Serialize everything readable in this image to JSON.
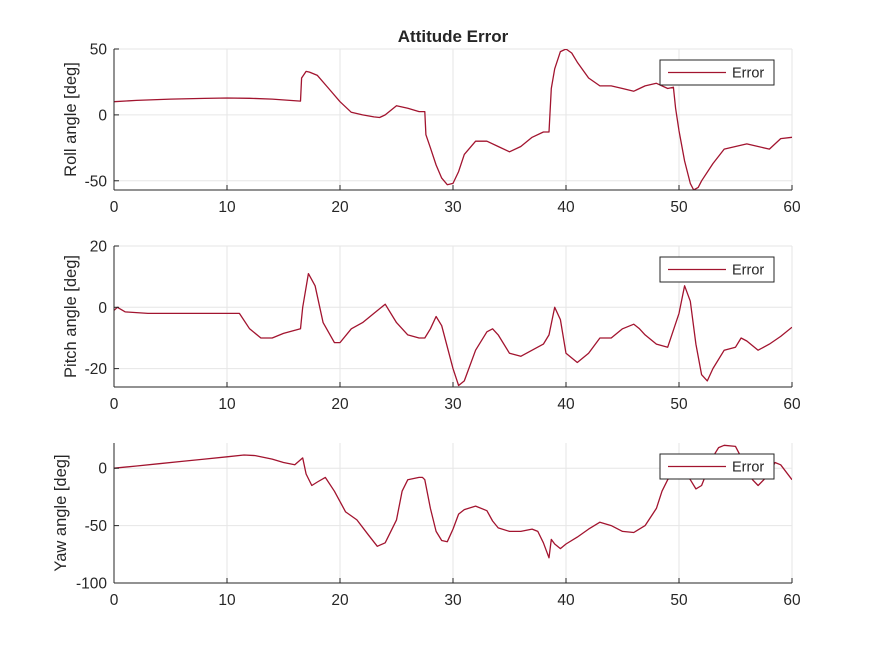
{
  "figure": {
    "title": "Attitude Error",
    "line_color": "#a2142f",
    "grid": true
  },
  "chart_data": [
    {
      "type": "line",
      "ylabel": "Roll angle [deg]",
      "xlabel": "",
      "xlim": [
        0,
        60
      ],
      "ylim": [
        -57,
        50
      ],
      "xticks": [
        0,
        10,
        20,
        30,
        40,
        50,
        60
      ],
      "yticks": [
        -50,
        0,
        50
      ],
      "legend": {
        "entries": [
          "Error"
        ],
        "location": "top-right"
      },
      "series": [
        {
          "name": "Error",
          "color": "#a2142f",
          "x": [
            0,
            2,
            5,
            8,
            10,
            12,
            14,
            16.5,
            16.6,
            17,
            17.3,
            18,
            19,
            20,
            21,
            22,
            23,
            23.5,
            24,
            25,
            26,
            27,
            27.5,
            27.6,
            28,
            28.5,
            29,
            29.5,
            30,
            30.5,
            31,
            32,
            33,
            34,
            35,
            36,
            37,
            38,
            38.5,
            38.7,
            39,
            39.5,
            40,
            40.5,
            41,
            42,
            43,
            44,
            45,
            46,
            47,
            48,
            49,
            49.5,
            49.7,
            50,
            50.5,
            51,
            51.3,
            51.7,
            52,
            53,
            54,
            55,
            56,
            57,
            58,
            59,
            60
          ],
          "y": [
            10,
            11,
            12,
            12.5,
            12.8,
            12.6,
            12,
            10.5,
            28,
            33,
            32.5,
            30,
            20,
            10,
            2,
            0,
            -1.5,
            -2,
            0,
            7,
            5,
            2.5,
            2.5,
            -15,
            -25,
            -38,
            -48,
            -53,
            -52,
            -43,
            -30,
            -20,
            -20,
            -24,
            -28,
            -24,
            -17,
            -13,
            -13,
            20,
            35,
            48,
            50,
            47,
            40,
            28,
            22,
            22,
            20,
            18,
            22,
            24,
            20,
            21,
            5,
            -12,
            -35,
            -52,
            -57,
            -55,
            -50,
            -37,
            -26,
            -24,
            -22,
            -24,
            -26,
            -18,
            -17
          ]
        }
      ]
    },
    {
      "type": "line",
      "ylabel": "Pitch angle [deg]",
      "xlabel": "",
      "xlim": [
        0,
        60
      ],
      "ylim": [
        -26,
        20
      ],
      "xticks": [
        0,
        10,
        20,
        30,
        40,
        50,
        60
      ],
      "yticks": [
        -20,
        0,
        20
      ],
      "legend": {
        "entries": [
          "Error"
        ],
        "location": "top-right"
      },
      "series": [
        {
          "name": "Error",
          "color": "#a2142f",
          "x": [
            0,
            0.3,
            1,
            3,
            6,
            9,
            11,
            11.1,
            12,
            13,
            14,
            15,
            16.5,
            16.7,
            17.2,
            17.8,
            18.5,
            19.5,
            20,
            21,
            22,
            23,
            24,
            25,
            26,
            27,
            27.5,
            28,
            28.5,
            29,
            30,
            30.5,
            31,
            32,
            33,
            33.5,
            34,
            35,
            36,
            37,
            38,
            38.5,
            39,
            39.5,
            40,
            41,
            42,
            43,
            44,
            45,
            46,
            46.5,
            47,
            48,
            49,
            50,
            50.5,
            51,
            51.5,
            52,
            52.5,
            53,
            54,
            55,
            55.5,
            56,
            57,
            58,
            59,
            60
          ],
          "y": [
            -1,
            0,
            -1.5,
            -2,
            -2,
            -2,
            -2,
            -2,
            -7,
            -10,
            -10,
            -8.5,
            -7,
            0,
            11,
            7,
            -5,
            -11.5,
            -11.5,
            -7,
            -5,
            -2,
            1,
            -5,
            -9,
            -10,
            -10,
            -7,
            -3,
            -6,
            -20,
            -25.5,
            -24,
            -14,
            -8,
            -7,
            -9,
            -15,
            -16,
            -14,
            -12,
            -9,
            0,
            -4,
            -15,
            -18,
            -15,
            -10,
            -10,
            -7,
            -5.5,
            -7,
            -9,
            -12,
            -13,
            -2,
            7,
            2,
            -12,
            -22,
            -24,
            -20,
            -14,
            -13,
            -10,
            -11,
            -14,
            -12,
            -9.5,
            -6.5
          ]
        }
      ]
    },
    {
      "type": "line",
      "ylabel": "Yaw angle [deg]",
      "xlabel": "",
      "xlim": [
        0,
        60
      ],
      "ylim": [
        -100,
        22
      ],
      "xticks": [
        0,
        10,
        20,
        30,
        40,
        50,
        60
      ],
      "yticks": [
        -100,
        -50,
        0
      ],
      "legend": {
        "entries": [
          "Error"
        ],
        "location": "top-right"
      },
      "series": [
        {
          "name": "Error",
          "color": "#a2142f",
          "x": [
            0,
            2,
            4,
            6,
            8,
            10,
            11.5,
            12.5,
            14,
            15,
            16,
            16.7,
            17,
            17.5,
            18,
            18.7,
            19.5,
            20.5,
            21.5,
            22.5,
            23.3,
            24,
            25,
            25.5,
            26,
            27,
            27.3,
            27.5,
            28,
            28.5,
            29,
            29.5,
            30,
            30.5,
            31,
            32,
            33,
            33.5,
            34,
            35,
            36,
            37,
            37.5,
            38,
            38.5,
            38.7,
            39,
            39.5,
            40,
            41,
            42,
            43,
            44,
            45,
            46,
            47,
            48,
            48.5,
            49,
            50,
            51,
            51.5,
            52,
            53,
            53.5,
            54,
            55,
            56,
            56.5,
            57,
            58,
            58.5,
            59,
            60
          ],
          "y": [
            0,
            2,
            4,
            6,
            8,
            10,
            11.5,
            11,
            8,
            5,
            3,
            9,
            -5,
            -15,
            -12,
            -8,
            -20,
            -38,
            -45,
            -58,
            -68,
            -65,
            -45,
            -20,
            -10,
            -8,
            -8,
            -10,
            -35,
            -55,
            -63,
            -64,
            -53,
            -40,
            -36,
            -33,
            -37,
            -46,
            -52,
            -55,
            -55,
            -53,
            -55,
            -65,
            -78,
            -62,
            -66,
            -70,
            -66,
            -60,
            -53,
            -47,
            -50,
            -55,
            -56,
            -50,
            -35,
            -20,
            -10,
            0,
            -10,
            -18,
            -15,
            10,
            18,
            20,
            19,
            0,
            -10,
            -15,
            -5,
            5,
            3,
            -10
          ]
        }
      ]
    }
  ]
}
